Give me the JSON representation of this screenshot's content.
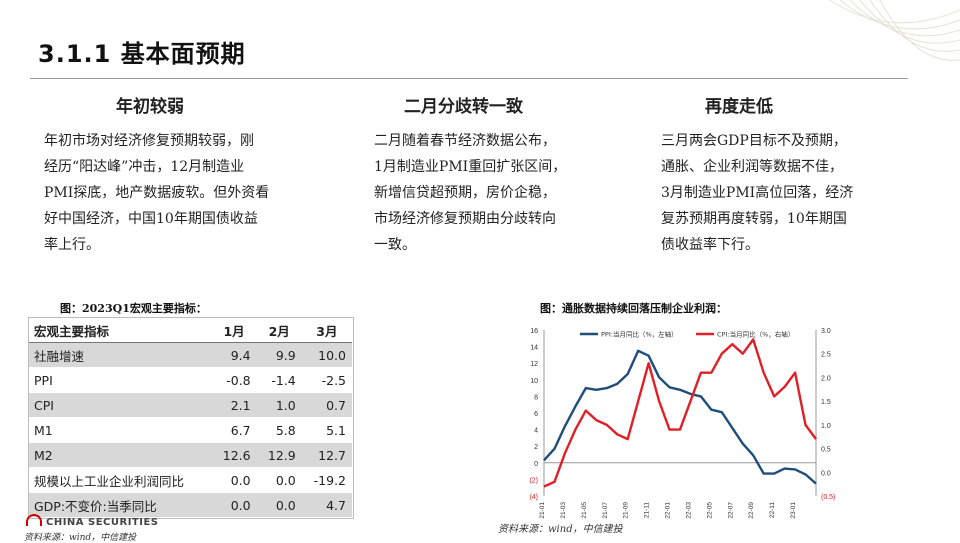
{
  "page": {
    "title": "3.1.1 基本面预期"
  },
  "columns": [
    {
      "heading": "年初较弱",
      "lines": [
        "年初市场对经济修复预期较弱，刚",
        "经历“阳达峰”冲击，12月制造业",
        "PMI探底，地产数据疲软。但外资看",
        "好中国经济，中国10年期国债收益",
        "率上行。"
      ]
    },
    {
      "heading": "二月分歧转一致",
      "lines": [
        "二月随着春节经济数据公布，",
        "1月制造业PMI重回扩张区间，",
        "新增信贷超预期，房价企稳，",
        "市场经济修复预期由分歧转向",
        "一致。"
      ]
    },
    {
      "heading": "再度走低",
      "lines": [
        "三月两会GDP目标不及预期，",
        "通胀、企业利润等数据不佳，",
        "3月制造业PMI高位回落，经济",
        "复苏预期再度转弱，10年期国",
        "债收益率下行。"
      ]
    }
  ],
  "figure1": {
    "caption": "图：2023Q1宏观主要指标：",
    "headers": [
      "宏观主要指标",
      "1月",
      "2月",
      "3月"
    ],
    "rows": [
      {
        "label": "社融增速",
        "v": [
          "9.4",
          "9.9",
          "10.0"
        ]
      },
      {
        "label": "PPI",
        "v": [
          "-0.8",
          "-1.4",
          "-2.5"
        ]
      },
      {
        "label": "CPI",
        "v": [
          "2.1",
          "1.0",
          "0.7"
        ]
      },
      {
        "label": "M1",
        "v": [
          "6.7",
          "5.8",
          "5.1"
        ]
      },
      {
        "label": "M2",
        "v": [
          "12.6",
          "12.9",
          "12.7"
        ]
      },
      {
        "label": "规模以上工业企业利润同比",
        "v": [
          "0.0",
          "0.0",
          "-19.2"
        ]
      },
      {
        "label": "GDP:不变价:当季同比",
        "v": [
          "0.0",
          "0.0",
          "4.7"
        ]
      }
    ],
    "source": "资料来源：wind，中信建投",
    "logo_text": "CHINA SECURITIES"
  },
  "figure2": {
    "caption": "图：通胀数据持续回落压制企业利润：",
    "source": "资料来源：wind，中信建投"
  },
  "chart_data": {
    "type": "line",
    "x": [
      "21-01",
      "21-02",
      "21-03",
      "21-04",
      "21-05",
      "21-06",
      "21-07",
      "21-08",
      "21-09",
      "21-10",
      "21-11",
      "21-12",
      "22-01",
      "22-02",
      "22-03",
      "22-04",
      "22-05",
      "22-06",
      "22-07",
      "22-08",
      "22-09",
      "22-10",
      "22-11",
      "22-12",
      "23-01",
      "23-02",
      "23-03"
    ],
    "x_tick_labels": [
      "21-01",
      "21-03",
      "21-05",
      "21-07",
      "21-09",
      "21-11",
      "22-01",
      "22-03",
      "22-05",
      "22-07",
      "22-09",
      "22-11",
      "23-01"
    ],
    "series": [
      {
        "name": "PPI:当月同比（%，左轴）",
        "axis": "left",
        "color": "#1f4e79",
        "values": [
          0.3,
          1.7,
          4.4,
          6.8,
          9.0,
          8.8,
          9.0,
          9.5,
          10.7,
          13.5,
          12.9,
          10.3,
          9.1,
          8.8,
          8.3,
          8.0,
          6.4,
          6.1,
          4.2,
          2.3,
          0.9,
          -1.3,
          -1.3,
          -0.7,
          -0.8,
          -1.4,
          -2.5
        ]
      },
      {
        "name": "CPI:当月同比（%，右轴）",
        "axis": "right",
        "color": "#e01f26",
        "values": [
          -0.3,
          -0.2,
          0.4,
          0.9,
          1.3,
          1.1,
          1.0,
          0.8,
          0.7,
          1.5,
          2.3,
          1.5,
          0.9,
          0.9,
          1.5,
          2.1,
          2.1,
          2.5,
          2.7,
          2.5,
          2.8,
          2.1,
          1.6,
          1.8,
          2.1,
          1.0,
          0.7
        ]
      }
    ],
    "y_left": {
      "min": -4,
      "max": 16,
      "ticks": [
        "(4)",
        "(2)",
        "0",
        "2",
        "4",
        "6",
        "8",
        "10",
        "12",
        "14",
        "16"
      ]
    },
    "y_right": {
      "min": -0.5,
      "max": 3.0,
      "ticks": [
        "(0.5)",
        "0.0",
        "0.5",
        "1.0",
        "1.5",
        "2.0",
        "2.5",
        "3.0"
      ]
    },
    "legend_position": "top"
  }
}
